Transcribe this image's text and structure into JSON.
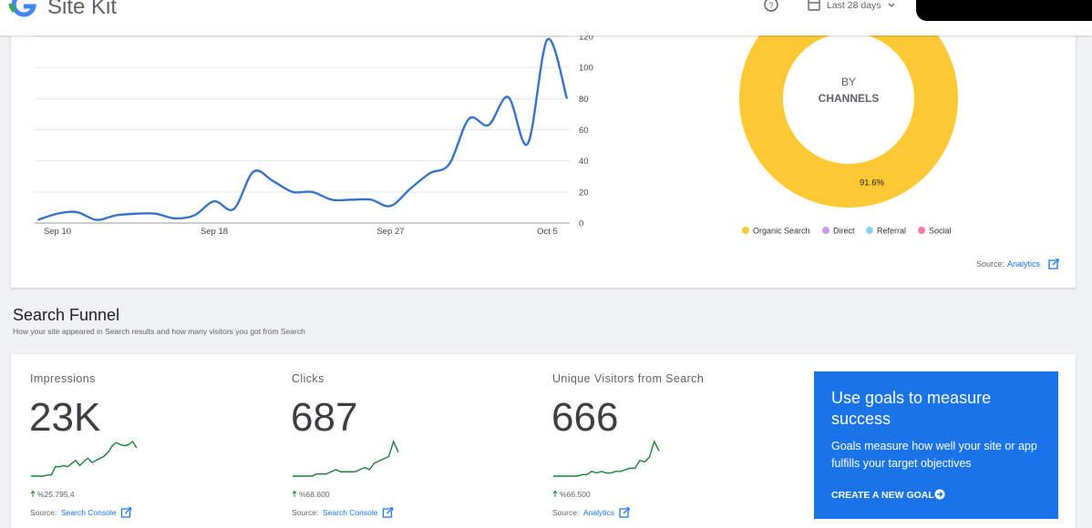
{
  "header": {
    "title": "Site Kit",
    "date_range": "Last 28 days"
  },
  "traffic_chart": {
    "type": "line",
    "categories": [
      null,
      "Sep 10",
      null,
      null,
      null,
      null,
      null,
      null,
      null,
      "Sep 18",
      null,
      null,
      null,
      null,
      null,
      null,
      null,
      null,
      "Sep 27",
      null,
      null,
      null,
      null,
      null,
      null,
      null,
      "Oct 5",
      null
    ],
    "values": [
      2,
      6,
      7,
      2,
      5,
      6,
      6,
      3,
      5,
      14,
      9,
      33,
      27,
      20,
      20,
      15,
      15,
      15,
      11,
      22,
      32,
      38,
      67,
      63,
      81,
      51,
      118,
      80
    ],
    "ylim": [
      0,
      120
    ],
    "yticks": [
      0,
      20,
      40,
      60,
      80,
      100,
      120
    ],
    "color": "#3873c8",
    "grid": true
  },
  "channels_chart": {
    "type": "pie",
    "title": "BY",
    "subtitle": "CHANNELS",
    "categories": [
      "Organic Search",
      "Direct",
      "Referral",
      "Social"
    ],
    "values": [
      91.6,
      5.2,
      2.7,
      0.5
    ],
    "value_labels": [
      "91.6%",
      null,
      null,
      null
    ],
    "colors": [
      "#fcc934",
      "#c79bf2",
      "#8ed1f7",
      "#f37bb5"
    ],
    "legend": "bottom"
  },
  "traffic_source": {
    "prefix": "Source:",
    "link": "Analytics"
  },
  "search_funnel": {
    "title": "Search Funnel",
    "subtitle": "How your site appeared in Search results and how many visitors you got from Search",
    "metrics": [
      {
        "label": "Impressions",
        "value": "23K",
        "change": "%25.795,4",
        "source_prefix": "Source:",
        "source_link": "Search Console",
        "sparkline": [
          3,
          3,
          3,
          3,
          4,
          4,
          12,
          12,
          13,
          12,
          15,
          18,
          13,
          17,
          20,
          16,
          18,
          20,
          22,
          26,
          32,
          35,
          33,
          32,
          33,
          36,
          30
        ]
      },
      {
        "label": "Clicks",
        "value": "687",
        "change": "%68.600",
        "source_prefix": "Source:",
        "source_link": "Search Console",
        "sparkline": [
          2,
          2,
          2,
          2,
          2,
          3,
          3,
          3,
          4,
          5,
          4,
          4,
          4,
          4,
          5,
          6,
          5,
          8,
          9,
          10,
          11,
          18,
          13
        ]
      },
      {
        "label": "Unique Visitors from Search",
        "value": "666",
        "change": "%66.500",
        "source_prefix": "Source:",
        "source_link": "Analytics",
        "sparkline": [
          2,
          2,
          2,
          2,
          2,
          2,
          3,
          3,
          5,
          4,
          5,
          4,
          4,
          5,
          5,
          6,
          7,
          7,
          12,
          11,
          14,
          24,
          18
        ]
      }
    ],
    "goals": {
      "title": "Use goals to measure success",
      "text": "Goals measure how well your site or app fulfills your target objectives",
      "button": "CREATE A NEW GOAL"
    }
  }
}
